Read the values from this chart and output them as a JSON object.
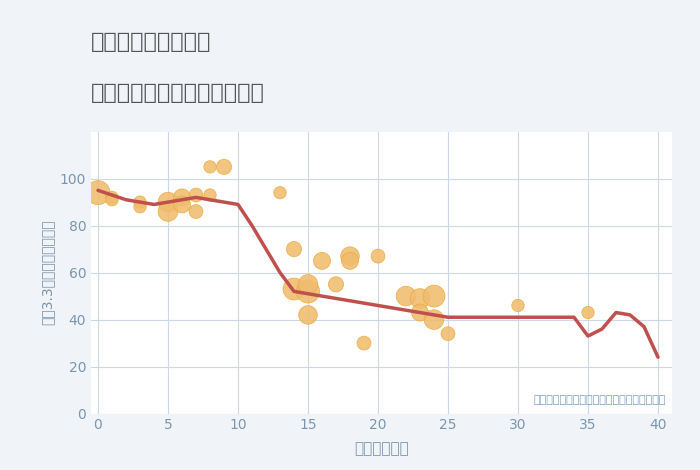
{
  "title_line1": "千葉県市原市江子田",
  "title_line2": "築年数別中古マンション価格",
  "xlabel": "築年数（年）",
  "ylabel": "坪（3.3㎡）単価（万円）",
  "annotation": "円の大きさは、取引のあった物件面積を示す",
  "bg_color": "#f0f4f8",
  "plot_bg_color": "#ffffff",
  "line_color": "#c0504d",
  "scatter_color": "#f0bc6e",
  "scatter_edge_color": "#e8a83a",
  "grid_color": "#ccd9e8",
  "title_color": "#555555",
  "tick_color": "#7a95b0",
  "annotation_color": "#7a9fc0",
  "xlim": [
    -0.5,
    41
  ],
  "ylim": [
    0,
    120
  ],
  "xticks": [
    0,
    5,
    10,
    15,
    20,
    25,
    30,
    35,
    40
  ],
  "yticks": [
    0,
    20,
    40,
    60,
    80,
    100
  ],
  "line_x": [
    0,
    1,
    2,
    3,
    4,
    5,
    6,
    7,
    8,
    9,
    10,
    11,
    12,
    13,
    14,
    15,
    16,
    17,
    18,
    19,
    20,
    21,
    22,
    23,
    24,
    25,
    26,
    27,
    28,
    29,
    30,
    31,
    32,
    33,
    34,
    35,
    36,
    37,
    38,
    39,
    40
  ],
  "line_y": [
    95,
    93,
    91,
    90,
    89,
    90,
    91,
    92,
    91,
    90,
    89,
    80,
    70,
    60,
    52,
    51,
    50,
    49,
    48,
    47,
    46,
    45,
    44,
    43,
    42,
    41,
    41,
    41,
    41,
    41,
    41,
    41,
    41,
    41,
    41,
    33,
    36,
    43,
    42,
    37,
    24
  ],
  "scatter_x": [
    0,
    1,
    1,
    3,
    3,
    5,
    5,
    6,
    6,
    7,
    7,
    8,
    8,
    9,
    13,
    14,
    14,
    15,
    15,
    15,
    16,
    17,
    18,
    18,
    19,
    20,
    22,
    23,
    23,
    24,
    24,
    25,
    30,
    35
  ],
  "scatter_y": [
    94,
    92,
    91,
    90,
    88,
    90,
    86,
    92,
    89,
    93,
    86,
    105,
    93,
    105,
    94,
    70,
    53,
    52,
    55,
    42,
    65,
    55,
    67,
    65,
    30,
    67,
    50,
    49,
    43,
    50,
    40,
    34,
    46,
    43
  ],
  "scatter_size": [
    300,
    80,
    80,
    80,
    80,
    200,
    200,
    150,
    150,
    100,
    100,
    80,
    80,
    120,
    80,
    120,
    250,
    280,
    200,
    180,
    150,
    120,
    180,
    150,
    100,
    100,
    200,
    200,
    150,
    250,
    200,
    100,
    80,
    80
  ]
}
